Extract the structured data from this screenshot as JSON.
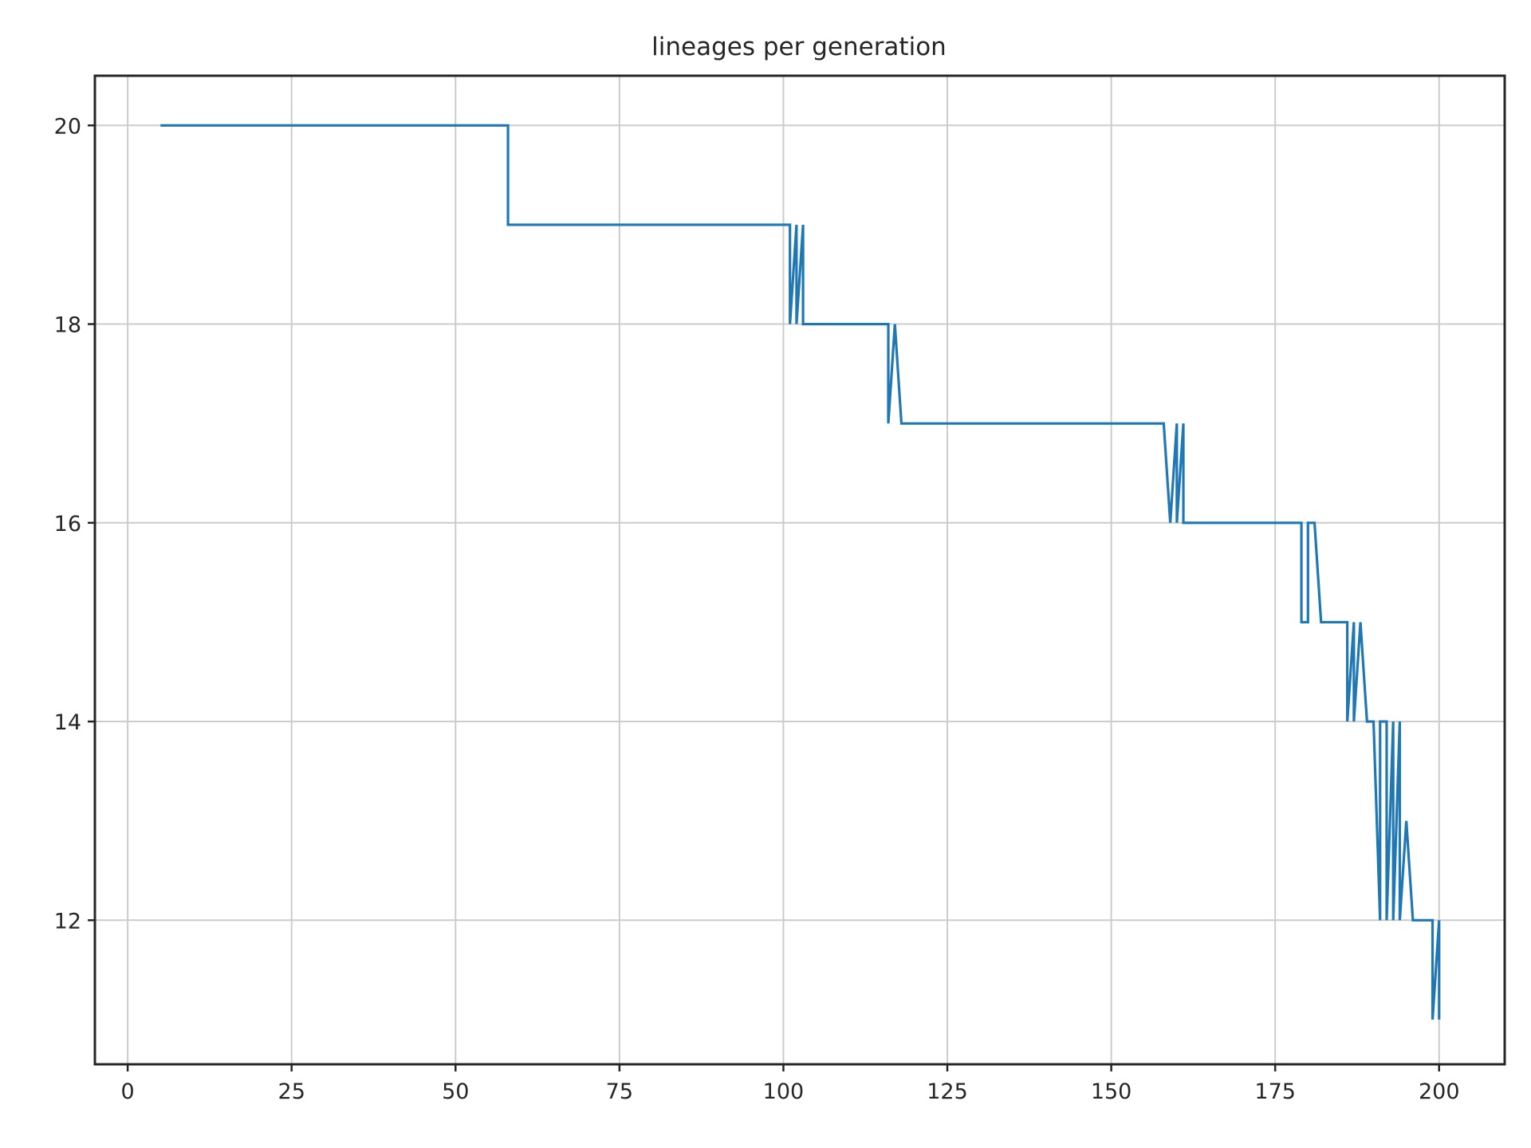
{
  "chart_data": {
    "type": "line",
    "title": "lineages per generation",
    "xlabel": "",
    "ylabel": "",
    "xlim": [
      -5,
      210
    ],
    "ylim": [
      10.55,
      20.5
    ],
    "xticks": [
      0,
      25,
      50,
      75,
      100,
      125,
      150,
      175,
      200
    ],
    "yticks": [
      12,
      14,
      16,
      18,
      20
    ],
    "grid": true,
    "legend": "none",
    "series": [
      {
        "color": "#1f77b4",
        "x": [
          5,
          58,
          58,
          101,
          101,
          102,
          102,
          103,
          103,
          104,
          104,
          116,
          116,
          117,
          117,
          118,
          118,
          158,
          159,
          160,
          160,
          161,
          161,
          179,
          179,
          180,
          180,
          181,
          182,
          182,
          186,
          186,
          187,
          187,
          188,
          189,
          189,
          190,
          191,
          191,
          192,
          192,
          193,
          193,
          194,
          194,
          195,
          196,
          196,
          199,
          199,
          200,
          200
        ],
        "y": [
          20,
          20,
          19,
          19,
          18,
          19,
          18,
          19,
          18,
          18,
          18,
          18,
          17,
          18,
          18,
          17,
          17,
          17,
          16,
          17,
          16,
          17,
          16,
          16,
          15,
          15,
          16,
          16,
          15,
          15,
          15,
          14,
          15,
          14,
          15,
          14,
          14,
          14,
          12,
          14,
          14,
          12,
          14,
          12,
          14,
          12,
          13,
          12,
          12,
          12,
          11,
          12,
          11
        ]
      }
    ]
  }
}
